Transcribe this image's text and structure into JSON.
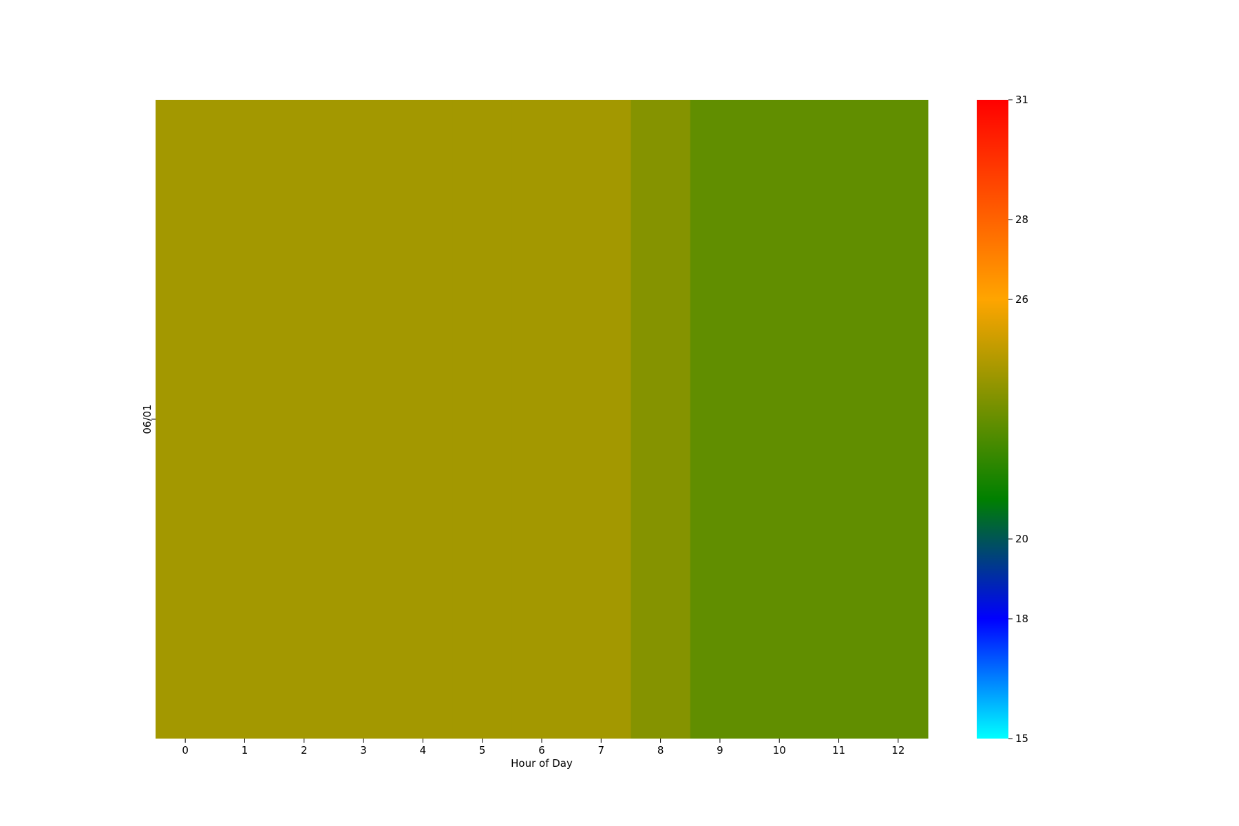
{
  "chart_data": {
    "type": "heatmap",
    "title": "",
    "xlabel": "Hour of Day",
    "ylabel": "",
    "x": [
      "0",
      "1",
      "2",
      "3",
      "4",
      "5",
      "6",
      "7",
      "8",
      "9",
      "10",
      "11",
      "12"
    ],
    "y": [
      "06/01"
    ],
    "values": [
      [
        24.2,
        24.2,
        24.2,
        24.2,
        24.2,
        24.2,
        24.2,
        24.2,
        23.6,
        22.9,
        22.9,
        22.9,
        22.9
      ]
    ],
    "grid": false,
    "colorbar": {
      "range": [
        15,
        31
      ],
      "ticks": [
        "15",
        "18",
        "20",
        "26",
        "28",
        "31"
      ],
      "colors": [
        {
          "value": 15,
          "color": "#00ffff"
        },
        {
          "value": 18,
          "color": "#0000ff"
        },
        {
          "value": 21,
          "color": "#008000"
        },
        {
          "value": 26,
          "color": "#ffa500"
        },
        {
          "value": 31,
          "color": "#ff0000"
        }
      ]
    }
  }
}
